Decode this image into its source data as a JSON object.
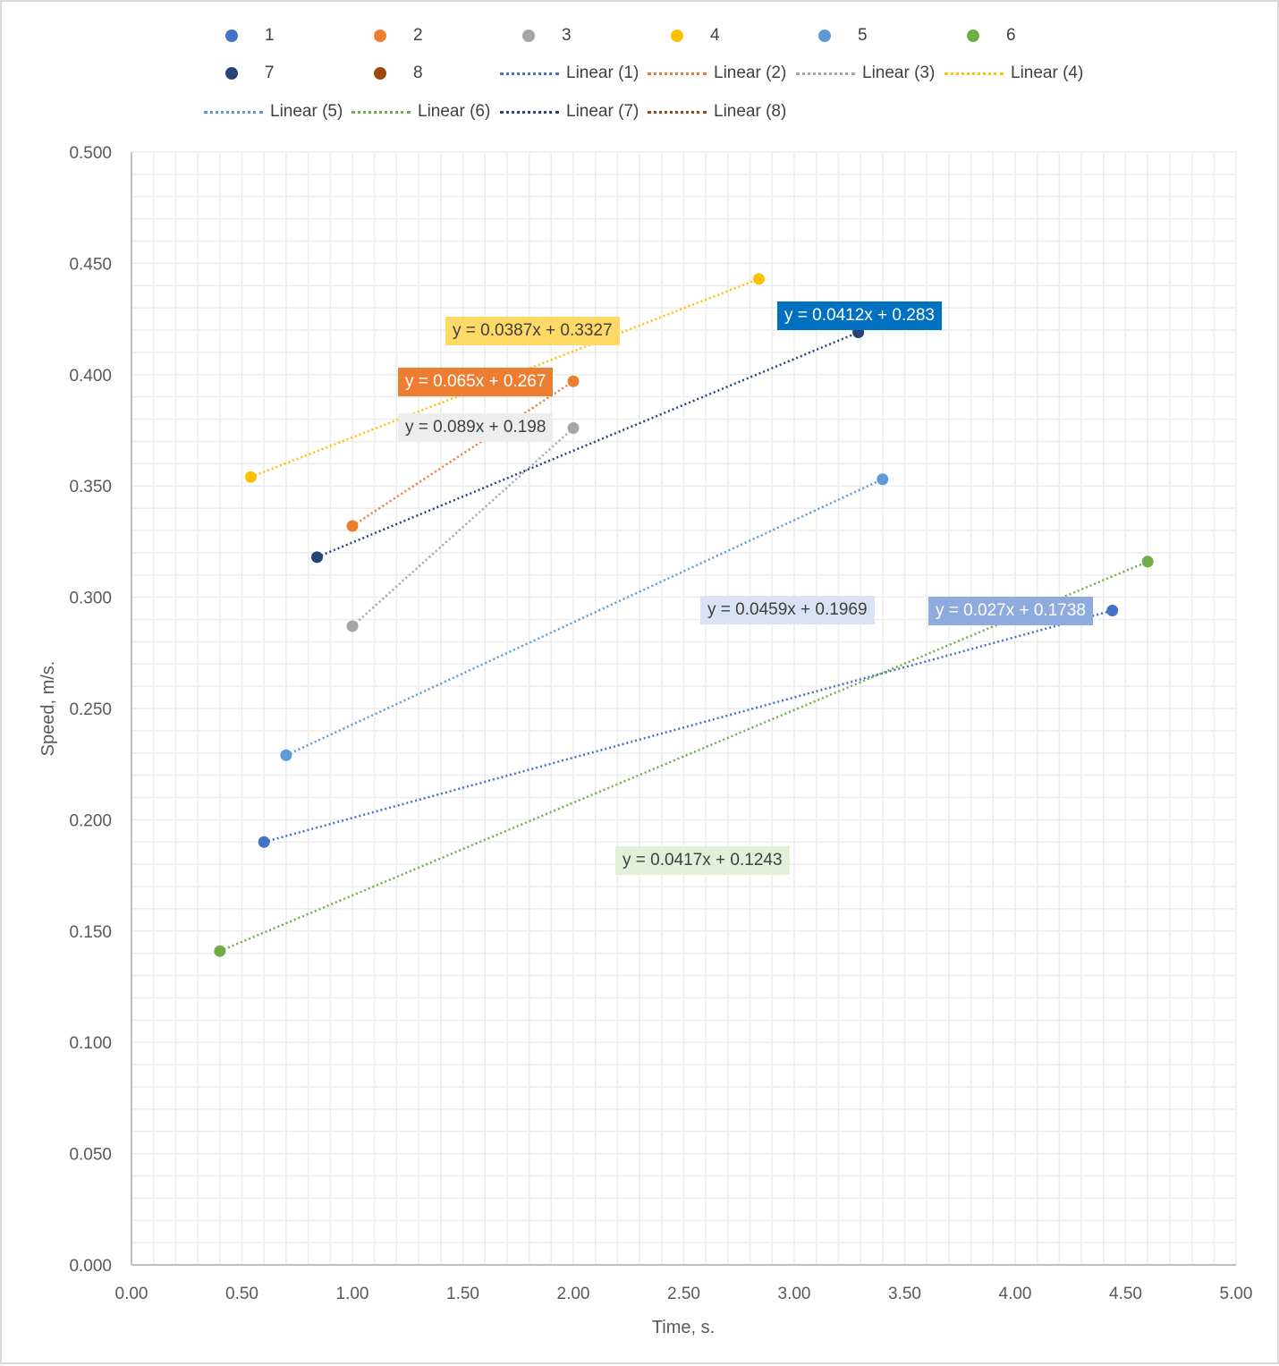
{
  "chart_data": {
    "type": "scatter",
    "title": "",
    "xlabel": "Time, s.",
    "ylabel": "Speed, m/s.",
    "xlim": [
      0,
      5
    ],
    "ylim": [
      0,
      0.5
    ],
    "grid": true,
    "legend_placement": "top",
    "x_ticks": [
      "0.00",
      "0.50",
      "1.00",
      "1.50",
      "2.00",
      "2.50",
      "3.00",
      "3.50",
      "4.00",
      "4.50",
      "5.00"
    ],
    "y_ticks": [
      "0.000",
      "0.050",
      "0.100",
      "0.150",
      "0.200",
      "0.250",
      "0.300",
      "0.350",
      "0.400",
      "0.450",
      "0.500"
    ],
    "series": [
      {
        "name": "1",
        "color": "#4472C4",
        "points": [
          [
            0.6,
            0.19
          ],
          [
            4.44,
            0.294
          ]
        ],
        "trend_label": "Linear (1)",
        "equation": "y = 0.027x + 0.1738",
        "eq_bg": "#8FAADC",
        "eq_fg": "#ffffff"
      },
      {
        "name": "2",
        "color": "#ED7D31",
        "points": [
          [
            1.0,
            0.332
          ],
          [
            2.0,
            0.397
          ]
        ],
        "trend_label": "Linear (2)",
        "equation": "y = 0.065x + 0.267",
        "eq_bg": "#ED7D31",
        "eq_fg": "#ffffff"
      },
      {
        "name": "3",
        "color": "#A5A5A5",
        "points": [
          [
            1.0,
            0.287
          ],
          [
            2.0,
            0.376
          ]
        ],
        "trend_label": "Linear (3)",
        "equation": "y = 0.089x + 0.198",
        "eq_bg": "#EDEDED",
        "eq_fg": "#404040"
      },
      {
        "name": "4",
        "color": "#FFC000",
        "points": [
          [
            0.54,
            0.354
          ],
          [
            2.84,
            0.443
          ]
        ],
        "trend_label": "Linear (4)",
        "equation": "y = 0.0387x + 0.3327",
        "eq_bg": "#FFD966",
        "eq_fg": "#404040"
      },
      {
        "name": "5",
        "color": "#5B9BD5",
        "points": [
          [
            0.7,
            0.229
          ],
          [
            3.4,
            0.353
          ]
        ],
        "trend_label": "Linear (5)",
        "equation": "y = 0.0459x + 0.1969",
        "eq_bg": "#DAE3F3",
        "eq_fg": "#404040"
      },
      {
        "name": "6",
        "color": "#70AD47",
        "points": [
          [
            0.4,
            0.141
          ],
          [
            4.6,
            0.316
          ]
        ],
        "trend_label": "Linear (6)",
        "equation": "y = 0.0417x + 0.1243",
        "eq_bg": "#E2F0D9",
        "eq_fg": "#404040"
      },
      {
        "name": "7",
        "color": "#264478",
        "points": [
          [
            0.84,
            0.318
          ],
          [
            3.29,
            0.419
          ]
        ],
        "trend_label": "Linear (7)",
        "equation": "y = 0.0412x + 0.283",
        "eq_bg": "#0070C0",
        "eq_fg": "#ffffff"
      },
      {
        "name": "8",
        "color": "#9E480E",
        "points": [],
        "trend_label": "Linear (8)",
        "equation": null
      }
    ]
  }
}
